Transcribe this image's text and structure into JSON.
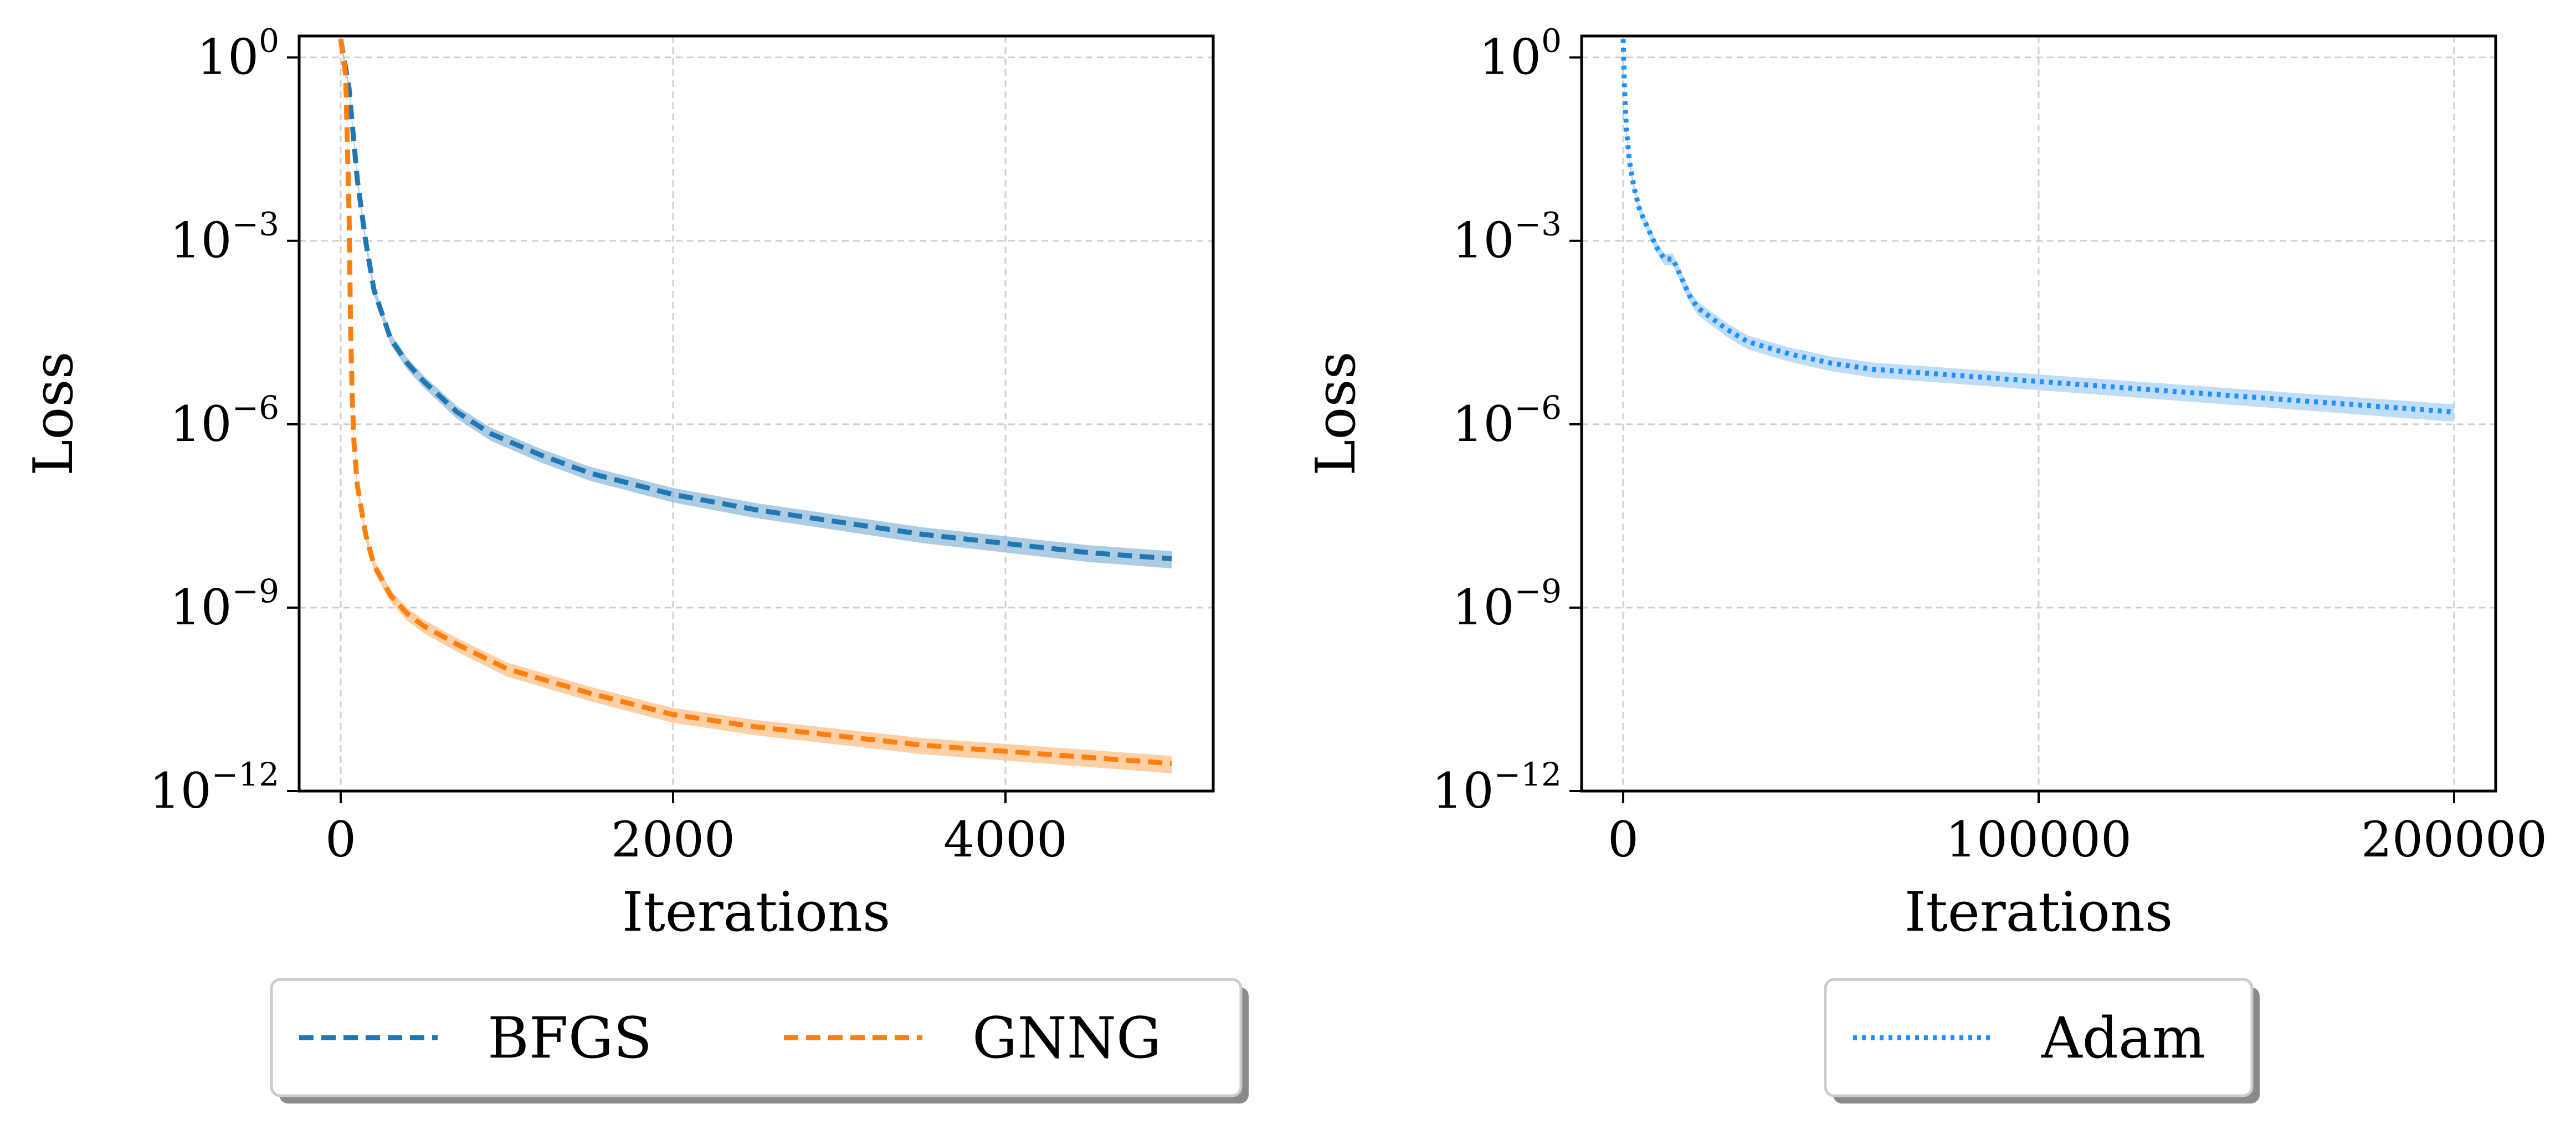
{
  "chart_data": [
    {
      "type": "line",
      "xlabel": "Iterations",
      "ylabel": "Loss",
      "yscale": "log",
      "xlim": [
        -250,
        5250
      ],
      "ylim_exp": [
        -12,
        0.35
      ],
      "xticks": [
        0,
        2000,
        4000
      ],
      "yticks": [
        {
          "base": "10",
          "exp": "0",
          "value_exp": 0
        },
        {
          "base": "10",
          "exp": "−3",
          "value_exp": -3
        },
        {
          "base": "10",
          "exp": "−6",
          "value_exp": -6
        },
        {
          "base": "10",
          "exp": "−9",
          "value_exp": -9
        },
        {
          "base": "10",
          "exp": "−12",
          "value_exp": -12
        }
      ],
      "grid": true,
      "legend_position": "below",
      "series": [
        {
          "name": "BFGS",
          "color": "#1f77b4",
          "band_color": "#8fbbd9",
          "linestyle": "dashed",
          "x": [
            0,
            50,
            100,
            150,
            200,
            300,
            400,
            500,
            700,
            900,
            1200,
            1500,
            2000,
            2500,
            3000,
            3500,
            4000,
            4500,
            5000
          ],
          "log10_y": [
            0.3,
            -0.5,
            -2.0,
            -3.0,
            -3.8,
            -4.6,
            -5.0,
            -5.3,
            -5.8,
            -6.15,
            -6.5,
            -6.8,
            -7.15,
            -7.4,
            -7.6,
            -7.8,
            -7.95,
            -8.1,
            -8.2
          ]
        },
        {
          "name": "GNNG",
          "color": "#ff7f0e",
          "band_color": "#ffbf87",
          "linestyle": "dashed",
          "x": [
            0,
            30,
            50,
            60,
            70,
            80,
            100,
            150,
            200,
            300,
            400,
            500,
            700,
            1000,
            1500,
            2000,
            2500,
            3000,
            3500,
            4000,
            4500,
            5000
          ],
          "log10_y": [
            0.3,
            -0.3,
            -2.5,
            -4.5,
            -5.6,
            -6.3,
            -7.0,
            -7.8,
            -8.3,
            -8.8,
            -9.1,
            -9.3,
            -9.6,
            -10.0,
            -10.4,
            -10.75,
            -10.95,
            -11.1,
            -11.25,
            -11.35,
            -11.45,
            -11.55
          ]
        }
      ]
    },
    {
      "type": "line",
      "xlabel": "Iterations",
      "ylabel": "Loss",
      "yscale": "log",
      "xlim": [
        -10000,
        210000
      ],
      "ylim_exp": [
        -12,
        0.35
      ],
      "xticks": [
        0,
        100000,
        200000
      ],
      "yticks": [
        {
          "base": "10",
          "exp": "0",
          "value_exp": 0
        },
        {
          "base": "10",
          "exp": "−3",
          "value_exp": -3
        },
        {
          "base": "10",
          "exp": "−6",
          "value_exp": -6
        },
        {
          "base": "10",
          "exp": "−9",
          "value_exp": -9
        },
        {
          "base": "10",
          "exp": "−12",
          "value_exp": -12
        }
      ],
      "grid": true,
      "legend_position": "below",
      "series": [
        {
          "name": "Adam",
          "color": "#1e90ff",
          "band_color": "#a9d0f5",
          "linestyle": "dotted",
          "x": [
            0,
            300,
            800,
            1500,
            2500,
            4000,
            6000,
            8000,
            10000,
            12000,
            14000,
            16000,
            18000,
            20000,
            25000,
            30000,
            40000,
            50000,
            60000,
            80000,
            100000,
            120000,
            140000,
            160000,
            180000,
            200000
          ],
          "log10_y": [
            0.3,
            -0.5,
            -1.2,
            -1.7,
            -2.1,
            -2.5,
            -2.8,
            -3.1,
            -3.3,
            -3.3,
            -3.6,
            -3.9,
            -4.1,
            -4.2,
            -4.45,
            -4.65,
            -4.85,
            -5.0,
            -5.1,
            -5.2,
            -5.3,
            -5.4,
            -5.5,
            -5.6,
            -5.7,
            -5.8
          ]
        }
      ]
    }
  ]
}
